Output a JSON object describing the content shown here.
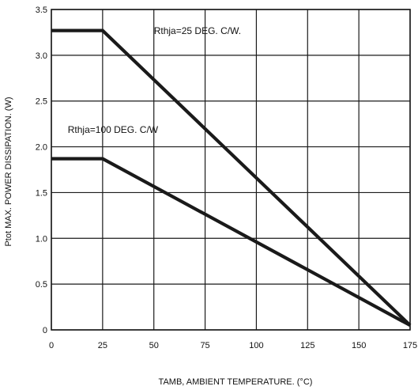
{
  "chart_data": {
    "type": "line",
    "xlabel": "TAMB, AMBIENT TEMPERATURE. (°C)",
    "ylabel": "Ptot MAX. POWER DISSIPATION. (W)",
    "xlim": [
      0,
      175
    ],
    "ylim": [
      0,
      3.5
    ],
    "grid": true,
    "x_ticks": [
      {
        "value": 0,
        "label": "0"
      },
      {
        "value": 25,
        "label": "25"
      },
      {
        "value": 50,
        "label": "50"
      },
      {
        "value": 75,
        "label": "75"
      },
      {
        "value": 100,
        "label": "100"
      },
      {
        "value": 125,
        "label": "125"
      },
      {
        "value": 150,
        "label": "150"
      },
      {
        "value": 175,
        "label": "175"
      }
    ],
    "y_ticks": [
      {
        "value": 0,
        "label": "0"
      },
      {
        "value": 0.5,
        "label": "0.5"
      },
      {
        "value": 1.0,
        "label": "1.0"
      },
      {
        "value": 1.5,
        "label": "1.5"
      },
      {
        "value": 2.0,
        "label": "2.0"
      },
      {
        "value": 2.5,
        "label": "2.5"
      },
      {
        "value": 3.0,
        "label": "3.0"
      },
      {
        "value": 3.5,
        "label": "3.5"
      }
    ],
    "series": [
      {
        "name": "Rthja=25 DEG. C/W.",
        "x": [
          0,
          25,
          175
        ],
        "y": [
          3.27,
          3.27,
          0.05
        ]
      },
      {
        "name": "Rthja=100 DEG. C/W",
        "x": [
          0,
          25,
          175
        ],
        "y": [
          1.87,
          1.87,
          0.05
        ]
      }
    ],
    "annotations": [
      {
        "text": "Rthja=25 DEG. C/W.",
        "x": 50,
        "y": 3.23
      },
      {
        "text": "Rthja=100 DEG. C/W",
        "x": 8,
        "y": 2.15
      }
    ],
    "colors": {
      "line": "#1a1a1a",
      "grid": "#1a1a1a",
      "background": "#ffffff"
    }
  }
}
